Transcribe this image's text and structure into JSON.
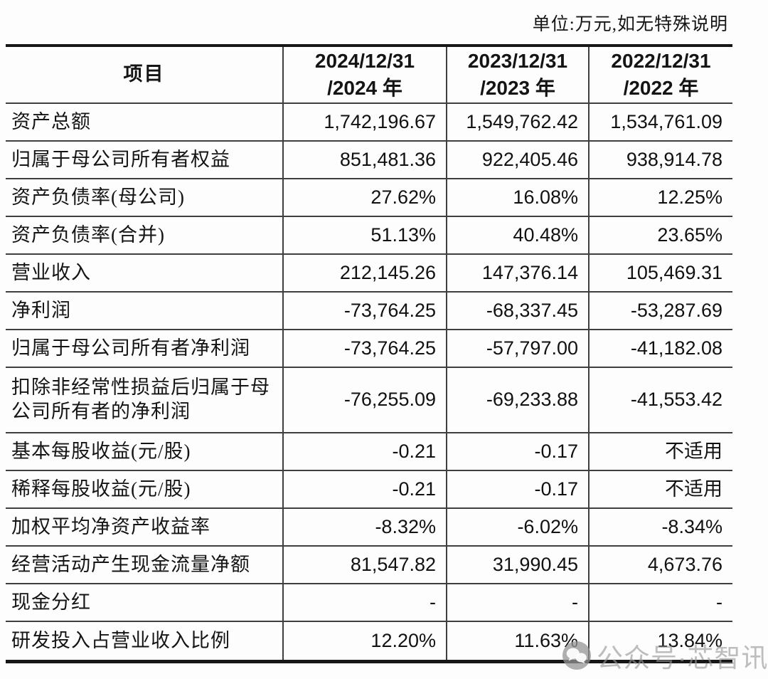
{
  "note": "单位:万元,如无特殊说明",
  "table": {
    "header": {
      "item_label": "项目",
      "periods": [
        {
          "line1": "2024/12/31",
          "line2": "/2024 年"
        },
        {
          "line1": "2023/12/31",
          "line2": "/2023 年"
        },
        {
          "line1": "2022/12/31",
          "line2": "/2022 年"
        }
      ]
    },
    "rows": [
      {
        "label": "资产总额",
        "values": [
          "1,742,196.67",
          "1,549,762.42",
          "1,534,761.09"
        ]
      },
      {
        "label": "归属于母公司所有者权益",
        "values": [
          "851,481.36",
          "922,405.46",
          "938,914.78"
        ]
      },
      {
        "label": "资产负债率(母公司)",
        "values": [
          "27.62%",
          "16.08%",
          "12.25%"
        ]
      },
      {
        "label": "资产负债率(合并)",
        "values": [
          "51.13%",
          "40.48%",
          "23.65%"
        ]
      },
      {
        "label": "营业收入",
        "values": [
          "212,145.26",
          "147,376.14",
          "105,469.31"
        ]
      },
      {
        "label": "净利润",
        "values": [
          "-73,764.25",
          "-68,337.45",
          "-53,287.69"
        ]
      },
      {
        "label": "归属于母公司所有者净利润",
        "values": [
          "-73,764.25",
          "-57,797.00",
          "-41,182.08"
        ]
      },
      {
        "label": "扣除非经常性损益后归属于母公司所有者的净利润",
        "values": [
          "-76,255.09",
          "-69,233.88",
          "-41,553.42"
        ],
        "tall": true
      },
      {
        "label": "基本每股收益(元/股)",
        "values": [
          "-0.21",
          "-0.17",
          "不适用"
        ]
      },
      {
        "label": "稀释每股收益(元/股)",
        "values": [
          "-0.21",
          "-0.17",
          "不适用"
        ]
      },
      {
        "label": "加权平均净资产收益率",
        "values": [
          "-8.32%",
          "-6.02%",
          "-8.34%"
        ]
      },
      {
        "label": "经营活动产生现金流量净额",
        "values": [
          "81,547.82",
          "31,990.45",
          "4,673.76"
        ]
      },
      {
        "label": "现金分红",
        "values": [
          "-",
          "-",
          "-"
        ]
      },
      {
        "label": "研发投入占营业收入比例",
        "values": [
          "12.20%",
          "11.63%",
          "13.84%"
        ]
      }
    ]
  },
  "watermark": {
    "icon": "chat-bubbles-icon",
    "text": "公众号·芯智讯"
  },
  "colors": {
    "text": "#141414",
    "border": "#3f3f3f",
    "border_heavy": "#161616",
    "watermark": "#969696",
    "background": "#fdfdfd"
  }
}
